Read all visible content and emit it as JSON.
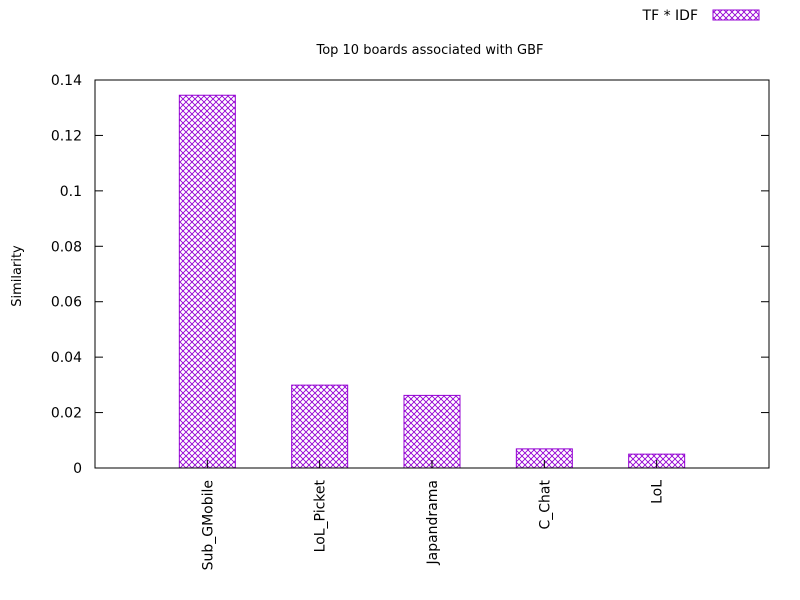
{
  "chart_data": {
    "type": "bar",
    "title": "Top 10 boards associated with GBF",
    "xlabel": "",
    "ylabel": "Similarity",
    "ylim": [
      0,
      0.14
    ],
    "yticks": [
      "0",
      "0.02",
      "0.04",
      "0.06",
      "0.08",
      "0.1",
      "0.12",
      "0.14"
    ],
    "categories": [
      "Sub_GMobile",
      "LoL_Picket",
      "Japandrama",
      "C_Chat",
      "LoL"
    ],
    "series": [
      {
        "name": "TF * IDF",
        "values": [
          0.1345,
          0.0299,
          0.0262,
          0.0069,
          0.005
        ],
        "color": "#9400d3"
      }
    ],
    "legend_position": "top-right",
    "grid": false
  }
}
